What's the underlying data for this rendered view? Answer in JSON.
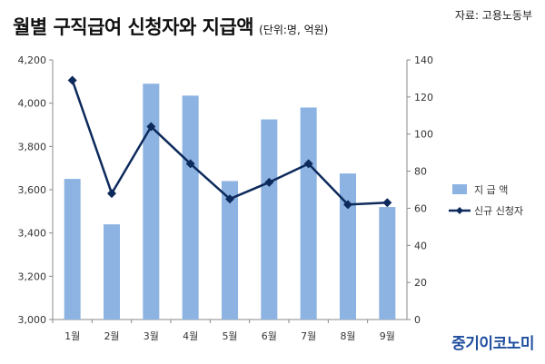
{
  "header": {
    "title": "월별 구직급여 신청자와 지급액",
    "unit_note": "(단위:명, 억원)",
    "source": "자료: 고용노동부",
    "logo": "중기이코노미"
  },
  "chart_data": {
    "type": "bar+line",
    "categories": [
      "1월",
      "2월",
      "3월",
      "4월",
      "5월",
      "6월",
      "7월",
      "8월",
      "9월"
    ],
    "series": [
      {
        "name": "지 급 액",
        "type": "bar",
        "axis": "left",
        "color": "#8db3e2",
        "values": [
          3650,
          3440,
          4090,
          4035,
          3640,
          3925,
          3980,
          3675,
          3520
        ]
      },
      {
        "name": "신규 신청자",
        "type": "line",
        "axis": "right",
        "color": "#0d2a5c",
        "values": [
          129,
          68,
          104,
          84,
          65,
          74,
          84,
          62,
          63
        ]
      }
    ],
    "y_left": {
      "min": 3000,
      "max": 4200,
      "step": 200,
      "ticks": [
        "3,000",
        "3,200",
        "3,400",
        "3,600",
        "3,800",
        "4,000",
        "4,200"
      ]
    },
    "y_right": {
      "min": 0,
      "max": 140,
      "step": 20,
      "ticks": [
        "0",
        "20",
        "40",
        "60",
        "80",
        "100",
        "120",
        "140"
      ]
    },
    "grid": false,
    "legend": "right"
  }
}
